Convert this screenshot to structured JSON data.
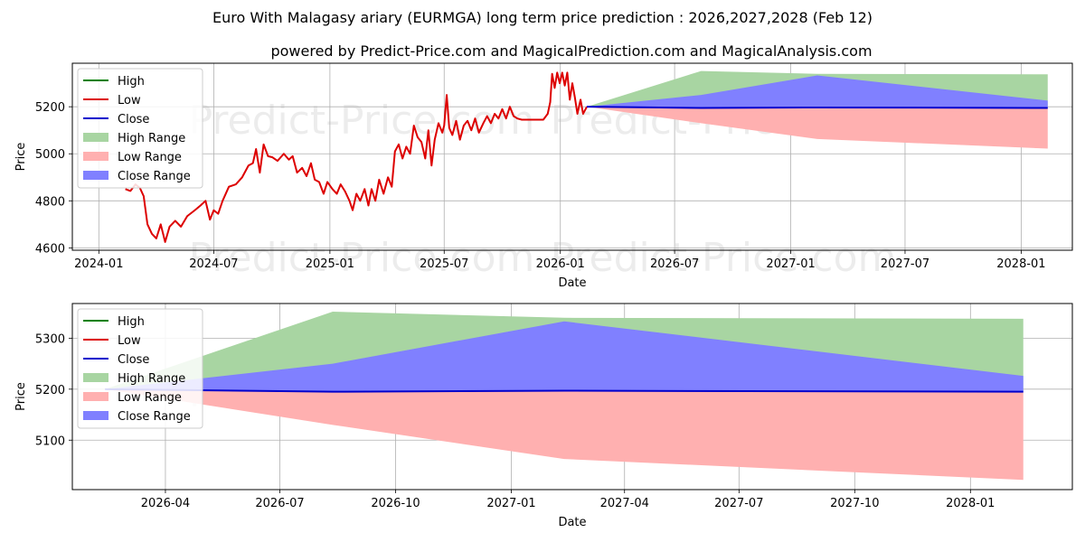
{
  "title": "Euro With Malagasy ariary (EURMGA) long term price prediction : 2026,2027,2028 (Feb 12)",
  "subtitle": "powered by Predict-Price.com and MagicalPrediction.com and MagicalAnalysis.com",
  "watermark": "Predict-Price.com",
  "colors": {
    "high": "#008000",
    "low": "#dd0000",
    "close": "#0000cc",
    "high_range": "#a8d5a2",
    "low_range": "#ffb0b0",
    "close_range": "#8080ff",
    "grid": "#b0b0b0"
  },
  "legend": [
    "High",
    "Low",
    "Close",
    "High Range",
    "Low Range",
    "Close Range"
  ],
  "chart_data": [
    {
      "type": "line",
      "title": "Euro With Malagasy ariary (EURMGA) long term price prediction : 2026,2027,2028 (Feb 12)",
      "xlabel": "Date",
      "ylabel": "Price",
      "xlim": [
        "2023-11-20",
        "2028-03-22"
      ],
      "ylim": [
        4590,
        5385
      ],
      "xticks": [
        {
          "date": "2024-01-01",
          "label": "2024-01"
        },
        {
          "date": "2024-07-01",
          "label": "2024-07"
        },
        {
          "date": "2025-01-01",
          "label": "2025-01"
        },
        {
          "date": "2025-07-01",
          "label": "2025-07"
        },
        {
          "date": "2026-01-01",
          "label": "2026-01"
        },
        {
          "date": "2026-07-01",
          "label": "2026-07"
        },
        {
          "date": "2027-01-01",
          "label": "2027-01"
        },
        {
          "date": "2027-07-01",
          "label": "2027-07"
        },
        {
          "date": "2028-01-01",
          "label": "2028-01"
        }
      ],
      "yticks": [
        4600,
        4800,
        5000,
        5200
      ],
      "history_low": [
        [
          "2024-02-12",
          4850
        ],
        [
          "2024-02-20",
          4842
        ],
        [
          "2024-02-28",
          4870
        ],
        [
          "2024-03-06",
          4855
        ],
        [
          "2024-03-12",
          4820
        ],
        [
          "2024-03-18",
          4700
        ],
        [
          "2024-03-25",
          4660
        ],
        [
          "2024-04-01",
          4640
        ],
        [
          "2024-04-08",
          4700
        ],
        [
          "2024-04-15",
          4625
        ],
        [
          "2024-04-22",
          4690
        ],
        [
          "2024-05-01",
          4715
        ],
        [
          "2024-05-10",
          4690
        ],
        [
          "2024-05-20",
          4735
        ],
        [
          "2024-06-01",
          4760
        ],
        [
          "2024-06-10",
          4780
        ],
        [
          "2024-06-18",
          4800
        ],
        [
          "2024-06-25",
          4720
        ],
        [
          "2024-07-01",
          4760
        ],
        [
          "2024-07-08",
          4745
        ],
        [
          "2024-07-15",
          4800
        ],
        [
          "2024-07-25",
          4860
        ],
        [
          "2024-08-05",
          4870
        ],
        [
          "2024-08-15",
          4900
        ],
        [
          "2024-08-25",
          4950
        ],
        [
          "2024-09-01",
          4960
        ],
        [
          "2024-09-06",
          5020
        ],
        [
          "2024-09-12",
          4920
        ],
        [
          "2024-09-18",
          5040
        ],
        [
          "2024-09-25",
          4990
        ],
        [
          "2024-10-02",
          4985
        ],
        [
          "2024-10-10",
          4970
        ],
        [
          "2024-10-20",
          5000
        ],
        [
          "2024-10-28",
          4975
        ],
        [
          "2024-11-03",
          4990
        ],
        [
          "2024-11-10",
          4920
        ],
        [
          "2024-11-18",
          4940
        ],
        [
          "2024-11-25",
          4905
        ],
        [
          "2024-12-02",
          4960
        ],
        [
          "2024-12-08",
          4890
        ],
        [
          "2024-12-15",
          4880
        ],
        [
          "2024-12-22",
          4830
        ],
        [
          "2024-12-28",
          4880
        ],
        [
          "2025-01-05",
          4850
        ],
        [
          "2025-01-12",
          4830
        ],
        [
          "2025-01-18",
          4870
        ],
        [
          "2025-01-25",
          4840
        ],
        [
          "2025-02-01",
          4800
        ],
        [
          "2025-02-06",
          4760
        ],
        [
          "2025-02-12",
          4830
        ],
        [
          "2025-02-18",
          4800
        ],
        [
          "2025-02-25",
          4850
        ],
        [
          "2025-03-03",
          4780
        ],
        [
          "2025-03-08",
          4850
        ],
        [
          "2025-03-14",
          4800
        ],
        [
          "2025-03-20",
          4890
        ],
        [
          "2025-03-27",
          4830
        ],
        [
          "2025-04-03",
          4900
        ],
        [
          "2025-04-09",
          4860
        ],
        [
          "2025-04-14",
          5010
        ],
        [
          "2025-04-20",
          5040
        ],
        [
          "2025-04-26",
          4980
        ],
        [
          "2025-05-02",
          5030
        ],
        [
          "2025-05-08",
          5000
        ],
        [
          "2025-05-14",
          5120
        ],
        [
          "2025-05-20",
          5070
        ],
        [
          "2025-05-26",
          5050
        ],
        [
          "2025-06-01",
          4980
        ],
        [
          "2025-06-06",
          5100
        ],
        [
          "2025-06-11",
          4950
        ],
        [
          "2025-06-16",
          5060
        ],
        [
          "2025-06-22",
          5130
        ],
        [
          "2025-06-28",
          5090
        ],
        [
          "2025-07-01",
          5120
        ],
        [
          "2025-07-05",
          5250
        ],
        [
          "2025-07-09",
          5110
        ],
        [
          "2025-07-14",
          5080
        ],
        [
          "2025-07-20",
          5140
        ],
        [
          "2025-07-26",
          5060
        ],
        [
          "2025-08-01",
          5120
        ],
        [
          "2025-08-07",
          5140
        ],
        [
          "2025-08-13",
          5100
        ],
        [
          "2025-08-19",
          5150
        ],
        [
          "2025-08-25",
          5090
        ],
        [
          "2025-09-01",
          5130
        ],
        [
          "2025-09-07",
          5160
        ],
        [
          "2025-09-13",
          5130
        ],
        [
          "2025-09-19",
          5170
        ],
        [
          "2025-09-25",
          5150
        ],
        [
          "2025-10-01",
          5190
        ],
        [
          "2025-10-07",
          5150
        ],
        [
          "2025-10-13",
          5200
        ],
        [
          "2025-10-19",
          5160
        ],
        [
          "2025-10-25",
          5150
        ],
        [
          "2025-11-01",
          5145
        ],
        [
          "2025-11-20",
          5145
        ],
        [
          "2025-12-05",
          5145
        ],
        [
          "2025-12-12",
          5170
        ],
        [
          "2025-12-16",
          5220
        ],
        [
          "2025-12-19",
          5340
        ],
        [
          "2025-12-23",
          5280
        ],
        [
          "2025-12-27",
          5345
        ],
        [
          "2025-12-31",
          5300
        ],
        [
          "2026-01-04",
          5345
        ],
        [
          "2026-01-08",
          5290
        ],
        [
          "2026-01-12",
          5345
        ],
        [
          "2026-01-16",
          5230
        ],
        [
          "2026-01-20",
          5300
        ],
        [
          "2026-01-24",
          5240
        ],
        [
          "2026-01-28",
          5170
        ],
        [
          "2026-02-02",
          5230
        ],
        [
          "2026-02-06",
          5170
        ],
        [
          "2026-02-12",
          5200
        ]
      ],
      "forecast_dates": [
        "2026-02-12",
        "2026-08-12",
        "2027-02-12",
        "2028-02-12"
      ],
      "high_range": {
        "upper": [
          5200,
          5352,
          5340,
          5338
        ],
        "lower": [
          5200,
          5195,
          5197,
          5195
        ]
      },
      "low_range": {
        "upper": [
          5200,
          5195,
          5197,
          5195
        ],
        "lower": [
          5200,
          5130,
          5063,
          5022
        ]
      },
      "close_range": {
        "upper": [
          5200,
          5250,
          5333,
          5226
        ],
        "lower": [
          5200,
          5195,
          5197,
          5195
        ]
      },
      "close_line": [
        5200,
        5195,
        5197,
        5195
      ]
    },
    {
      "type": "line",
      "title": "",
      "xlabel": "Date",
      "ylabel": "Price",
      "xlim": [
        "2026-01-17",
        "2028-03-22"
      ],
      "ylim": [
        5003,
        5368
      ],
      "xticks": [
        {
          "date": "2026-04-01",
          "label": "2026-04"
        },
        {
          "date": "2026-07-01",
          "label": "2026-07"
        },
        {
          "date": "2026-10-01",
          "label": "2026-10"
        },
        {
          "date": "2027-01-01",
          "label": "2027-01"
        },
        {
          "date": "2027-04-01",
          "label": "2027-04"
        },
        {
          "date": "2027-07-01",
          "label": "2027-07"
        },
        {
          "date": "2027-10-01",
          "label": "2027-10"
        },
        {
          "date": "2028-01-01",
          "label": "2028-01"
        }
      ],
      "yticks": [
        5100,
        5200,
        5300
      ],
      "forecast_dates": [
        "2026-02-12",
        "2026-08-12",
        "2027-02-12",
        "2028-02-12"
      ],
      "high_range": {
        "upper": [
          5200,
          5352,
          5340,
          5338
        ],
        "lower": [
          5200,
          5195,
          5197,
          5195
        ]
      },
      "low_range": {
        "upper": [
          5200,
          5195,
          5197,
          5195
        ],
        "lower": [
          5200,
          5130,
          5063,
          5022
        ]
      },
      "close_range": {
        "upper": [
          5200,
          5250,
          5333,
          5226
        ],
        "lower": [
          5200,
          5195,
          5197,
          5195
        ]
      },
      "close_line": [
        5200,
        5195,
        5197,
        5195
      ]
    }
  ]
}
